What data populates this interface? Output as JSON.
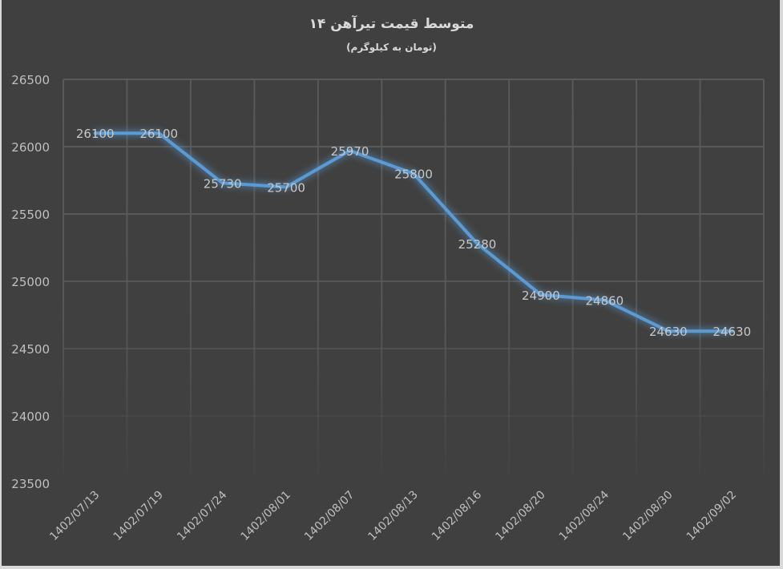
{
  "chart_data": {
    "type": "line",
    "title": "متوسط قیمت تیرآهن ۱۴",
    "subtitle": "(تومان به کیلوگرم)",
    "xlabel": "",
    "ylabel": "",
    "categories": [
      "1402/07/13",
      "1402/07/19",
      "1402/07/24",
      "1402/08/01",
      "1402/08/07",
      "1402/08/13",
      "1402/08/16",
      "1402/08/20",
      "1402/08/24",
      "1402/08/30",
      "1402/09/02"
    ],
    "series": [
      {
        "name": "متوسط قیمت تیرآهن ۱۴",
        "values": [
          26100,
          26100,
          25730,
          25700,
          25970,
          25800,
          25280,
          24900,
          24860,
          24630,
          24630
        ],
        "color": "#5b9bd5"
      }
    ],
    "ylim": [
      23500,
      26500
    ],
    "yticks": [
      26500,
      26000,
      25500,
      25000,
      24500,
      24000,
      23500
    ],
    "grid": true,
    "legend": "none",
    "data_labels": true
  },
  "colors": {
    "background": "#404040",
    "grid": "#595959",
    "text": "#bfbfbf",
    "line": "#5b9bd5"
  }
}
